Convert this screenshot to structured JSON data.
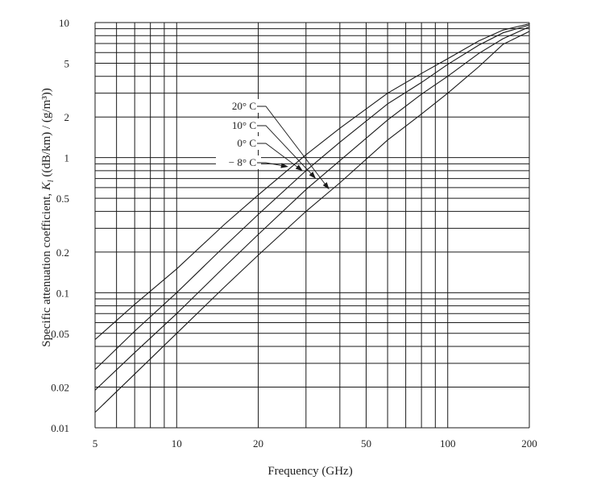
{
  "chart_data": {
    "type": "line",
    "title": "",
    "xlabel": "Frequency (GHz)",
    "ylabel_prefix": "Specific attenuation coefficient, ",
    "ylabel_symbol": "K",
    "ylabel_subscript": "l",
    "ylabel_suffix": " ((dB/km) / (g/m³))",
    "x_scale": "log",
    "y_scale": "log",
    "xlim": [
      5,
      200
    ],
    "ylim": [
      0.01,
      10
    ],
    "x_ticks": [
      {
        "value": 5,
        "label": "5"
      },
      {
        "value": 10,
        "label": "10"
      },
      {
        "value": 20,
        "label": "20"
      },
      {
        "value": 50,
        "label": "50"
      },
      {
        "value": 100,
        "label": "100"
      },
      {
        "value": 200,
        "label": "200"
      }
    ],
    "y_ticks": [
      {
        "value": 0.01,
        "label": "0.01"
      },
      {
        "value": 0.02,
        "label": "0.02"
      },
      {
        "value": 0.05,
        "label": "0.05"
      },
      {
        "value": 0.1,
        "label": "0.1"
      },
      {
        "value": 0.2,
        "label": "0.2"
      },
      {
        "value": 0.5,
        "label": "0.5"
      },
      {
        "value": 1,
        "label": "1"
      },
      {
        "value": 2,
        "label": "2"
      },
      {
        "value": 5,
        "label": "5"
      },
      {
        "value": 10,
        "label": "10"
      }
    ],
    "grid": true,
    "series": [
      {
        "name": "20° C",
        "x": [
          5,
          7,
          10,
          15,
          20,
          30,
          40,
          60,
          80,
          100,
          130,
          160,
          200
        ],
        "y": [
          0.013,
          0.025,
          0.05,
          0.11,
          0.19,
          0.4,
          0.65,
          1.35,
          2.1,
          3.0,
          4.7,
          6.9,
          8.6
        ]
      },
      {
        "name": "10° C",
        "x": [
          5,
          7,
          10,
          15,
          20,
          30,
          40,
          60,
          80,
          100,
          130,
          160,
          200
        ],
        "y": [
          0.019,
          0.036,
          0.07,
          0.155,
          0.27,
          0.58,
          0.95,
          1.9,
          2.95,
          4.0,
          5.9,
          7.6,
          9.3
        ]
      },
      {
        "name": "0° C",
        "x": [
          5,
          7,
          10,
          15,
          20,
          30,
          40,
          60,
          80,
          100,
          130,
          160,
          200
        ],
        "y": [
          0.027,
          0.052,
          0.1,
          0.22,
          0.38,
          0.8,
          1.3,
          2.5,
          3.6,
          4.9,
          6.8,
          8.4,
          9.6
        ]
      },
      {
        "name": "− 8° C",
        "x": [
          5,
          7,
          10,
          15,
          20,
          30,
          40,
          60,
          80,
          100,
          130,
          160,
          200
        ],
        "y": [
          0.045,
          0.082,
          0.15,
          0.32,
          0.53,
          1.05,
          1.65,
          3.0,
          4.2,
          5.4,
          7.3,
          8.8,
          9.8
        ]
      }
    ]
  }
}
